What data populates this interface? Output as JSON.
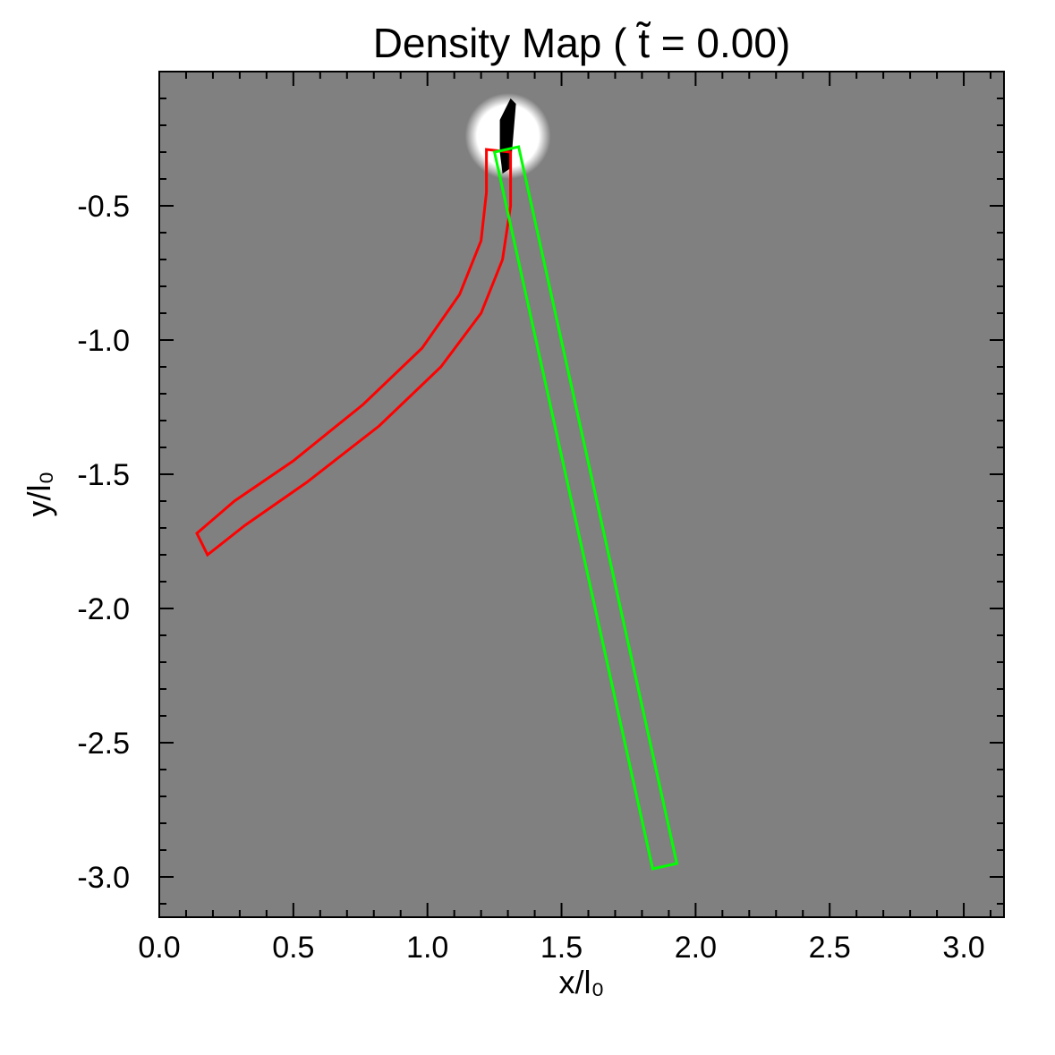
{
  "chart_data": {
    "type": "heatmap",
    "title": "Density Map ( t̃ = 0.00)",
    "xlabel": "x/l₀",
    "ylabel": "y/l₀",
    "xlim": [
      0.0,
      3.15
    ],
    "ylim": [
      -3.15,
      0.0
    ],
    "x_ticks": [
      "0.0",
      "0.5",
      "1.0",
      "1.5",
      "2.0",
      "2.5",
      "3.0"
    ],
    "y_ticks": [
      "-0.5",
      "-1.0",
      "-1.5",
      "-2.0",
      "-2.5",
      "-3.0"
    ],
    "background_color": "#808080",
    "features": [
      {
        "name": "bright-blob",
        "color": "#ffffff",
        "center": [
          1.3,
          -0.24
        ],
        "radius": 0.16
      },
      {
        "name": "dark-streak",
        "color": "#000000",
        "polygon": [
          [
            1.27,
            -0.18
          ],
          [
            1.31,
            -0.1
          ],
          [
            1.33,
            -0.12
          ],
          [
            1.32,
            -0.24
          ],
          [
            1.31,
            -0.36
          ],
          [
            1.28,
            -0.38
          ],
          [
            1.27,
            -0.3
          ]
        ]
      }
    ],
    "regions": [
      {
        "name": "red-curved-region",
        "color": "#ff0000",
        "outer": [
          [
            1.31,
            -0.3
          ],
          [
            1.31,
            -0.5
          ],
          [
            1.28,
            -0.7
          ],
          [
            1.2,
            -0.9
          ],
          [
            1.05,
            -1.1
          ],
          [
            0.82,
            -1.32
          ],
          [
            0.55,
            -1.53
          ],
          [
            0.32,
            -1.69
          ],
          [
            0.18,
            -1.8
          ]
        ],
        "inner": [
          [
            1.22,
            -0.29
          ],
          [
            1.22,
            -0.45
          ],
          [
            1.2,
            -0.63
          ],
          [
            1.12,
            -0.83
          ],
          [
            0.98,
            -1.03
          ],
          [
            0.76,
            -1.24
          ],
          [
            0.5,
            -1.45
          ],
          [
            0.28,
            -1.6
          ],
          [
            0.14,
            -1.72
          ]
        ]
      },
      {
        "name": "green-straight-region",
        "color": "#00ff00",
        "corners": [
          [
            1.25,
            -0.3
          ],
          [
            1.34,
            -0.28
          ],
          [
            1.93,
            -2.95
          ],
          [
            1.84,
            -2.97
          ]
        ]
      }
    ]
  }
}
